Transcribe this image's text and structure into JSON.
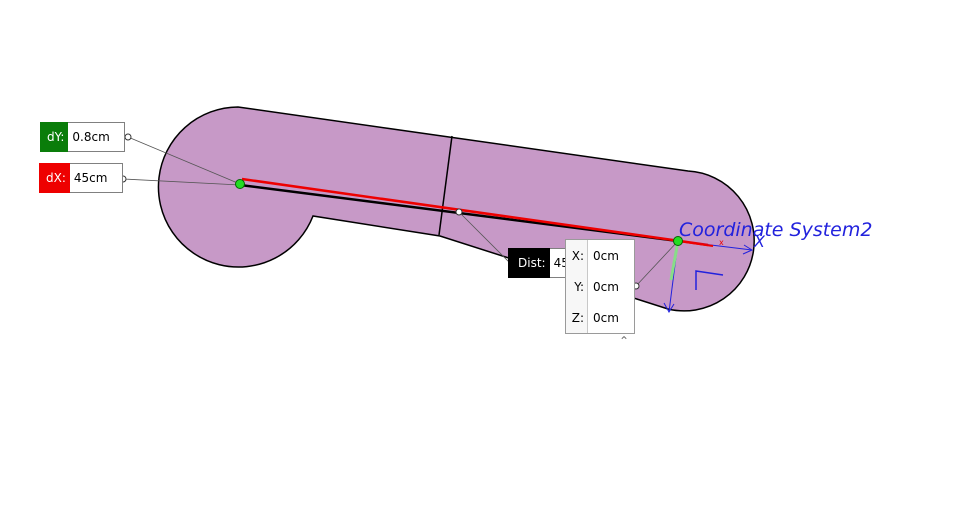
{
  "measure": {
    "dy": {
      "label": "dY:",
      "value": "0.8cm"
    },
    "dx": {
      "label": "dX:",
      "value": "45cm"
    },
    "dist": {
      "label": "Dist:",
      "value": "45"
    },
    "point": {
      "x": {
        "label": "X:",
        "value": "0cm"
      },
      "y": {
        "label": "Y:",
        "value": "0cm"
      },
      "z": {
        "label": "Z:",
        "value": "0cm"
      }
    }
  },
  "coordinate_system": {
    "label": "Coordinate System2",
    "axis_x": "X",
    "axis_x_small": "x"
  },
  "colors": {
    "part_fill": "#c799c7",
    "dy_tag": "#0a7d0a",
    "dx_tag": "#ee0000",
    "dist_tag": "#000000",
    "axis": "#2222dd",
    "measure_line": "#ee0000",
    "point": "#22dd22"
  },
  "icons": [
    "collapse-chevron-up-icon",
    "coordinate-system-triad-icon"
  ]
}
